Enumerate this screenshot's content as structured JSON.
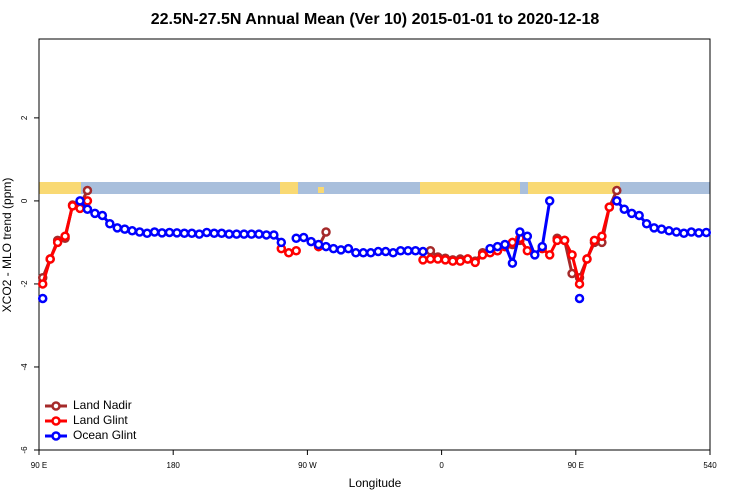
{
  "chart_data": {
    "type": "line",
    "title": "22.5N-27.5N Annual Mean (Ver 10)   2015-01-01 to 2020-12-18",
    "xlabel": "Longitude",
    "ylabel": "XCO2 - MLO trend (ppm)",
    "xlim": [
      90,
      540
    ],
    "ylim": [
      -6,
      3.9
    ],
    "xticks": [
      {
        "value": 90,
        "label": "90 E"
      },
      180,
      {
        "value": 270,
        "label": "90 W"
      },
      {
        "value": 360,
        "label": "0"
      },
      {
        "value": 450,
        "label": "90 E"
      },
      540
    ],
    "yticks": [
      -6,
      -4,
      -2,
      0,
      2
    ],
    "legend": "bottom-left",
    "x": [
      92.5,
      97.5,
      102.5,
      107.5,
      112.5,
      117.5,
      122.5,
      127.5,
      132.5,
      137.5,
      142.5,
      147.5,
      152.5,
      157.5,
      162.5,
      167.5,
      172.5,
      177.5,
      182.5,
      187.5,
      192.5,
      197.5,
      202.5,
      207.5,
      212.5,
      217.5,
      222.5,
      227.5,
      232.5,
      237.5,
      242.5,
      247.5,
      252.5,
      257.5,
      262.5,
      267.5,
      272.5,
      277.5,
      282.5,
      287.5,
      292.5,
      297.5,
      302.5,
      307.5,
      312.5,
      317.5,
      322.5,
      327.5,
      332.5,
      337.5,
      342.5,
      347.5,
      352.5,
      357.5,
      362.5,
      367.5,
      372.5,
      377.5,
      382.5,
      387.5,
      392.5,
      397.5,
      402.5,
      407.5,
      412.5,
      417.5,
      422.5,
      427.5,
      432.5,
      437.5,
      442.5,
      447.5,
      452.5,
      457.5,
      462.5,
      467.5,
      472.5,
      477.5,
      482.5,
      487.5,
      492.5,
      497.5,
      502.5,
      507.5,
      512.5,
      517.5,
      522.5,
      527.5,
      532.5,
      537.5
    ],
    "series": [
      {
        "name": "Land Nadir",
        "color": "#a52a2a",
        "values": [
          -1.85,
          -1.4,
          -0.95,
          -0.9,
          -0.1,
          -0.1,
          0.25,
          null,
          null,
          null,
          null,
          null,
          null,
          null,
          null,
          null,
          null,
          null,
          null,
          null,
          null,
          null,
          null,
          null,
          null,
          null,
          null,
          null,
          null,
          null,
          null,
          null,
          null,
          null,
          null,
          null,
          null,
          -1.1,
          -0.75,
          null,
          null,
          null,
          null,
          null,
          null,
          null,
          null,
          null,
          null,
          null,
          null,
          null,
          -1.2,
          -1.35,
          -1.38,
          -1.42,
          -1.4,
          -1.4,
          -1.45,
          -1.25,
          -1.2,
          -1.2,
          -1.1,
          -1.05,
          -0.95,
          null,
          null,
          null,
          null,
          -0.9,
          -0.95,
          -1.75,
          -1.85,
          -1.4,
          -1.0,
          -1.0,
          -0.15,
          0.25,
          null,
          null,
          null,
          null,
          null,
          null,
          null,
          null,
          null,
          null,
          null,
          null
        ]
      },
      {
        "name": "Land Glint",
        "color": "#ff0000",
        "values": [
          -2.0,
          -1.4,
          -1.0,
          -0.85,
          -0.12,
          -0.18,
          0,
          null,
          null,
          null,
          null,
          null,
          null,
          null,
          null,
          null,
          null,
          null,
          null,
          null,
          null,
          null,
          null,
          null,
          null,
          null,
          null,
          null,
          null,
          null,
          null,
          null,
          -1.15,
          -1.25,
          -1.2,
          null,
          null,
          -1.1,
          null,
          null,
          null,
          null,
          null,
          null,
          null,
          null,
          null,
          null,
          null,
          null,
          null,
          -1.42,
          -1.4,
          -1.4,
          -1.42,
          -1.45,
          -1.45,
          -1.4,
          -1.48,
          -1.3,
          -1.25,
          -1.2,
          -1.1,
          -1.0,
          -0.9,
          -1.2,
          null,
          -1.15,
          -1.3,
          -0.95,
          -0.95,
          -1.3,
          -2.0,
          -1.4,
          -0.95,
          -0.85,
          -0.15,
          0,
          null,
          null,
          null,
          null,
          null,
          null,
          null,
          null,
          null,
          null,
          null,
          null
        ]
      },
      {
        "name": "Ocean Glint",
        "color": "#0000ff",
        "values": [
          -2.35,
          null,
          null,
          null,
          null,
          0,
          -0.2,
          -0.3,
          -0.35,
          -0.55,
          -0.65,
          -0.68,
          -0.72,
          -0.75,
          -0.78,
          -0.75,
          -0.77,
          -0.76,
          -0.77,
          -0.78,
          -0.78,
          -0.8,
          -0.76,
          -0.78,
          -0.78,
          -0.8,
          -0.8,
          -0.8,
          -0.8,
          -0.8,
          -0.82,
          -0.82,
          -1.0,
          null,
          -0.9,
          -0.88,
          -0.98,
          -1.05,
          -1.1,
          -1.15,
          -1.18,
          -1.15,
          -1.25,
          -1.25,
          -1.25,
          -1.22,
          -1.22,
          -1.25,
          -1.2,
          -1.2,
          -1.2,
          -1.22,
          null,
          null,
          null,
          null,
          null,
          null,
          null,
          null,
          -1.15,
          -1.1,
          -1.05,
          -1.5,
          -0.75,
          -0.85,
          -1.3,
          -1.1,
          0,
          null,
          null,
          null,
          -2.35,
          null,
          null,
          null,
          null,
          0,
          -0.2,
          -0.3,
          -0.35,
          -0.55,
          -0.65,
          -0.68,
          -0.72,
          -0.75,
          -0.78,
          -0.75,
          -0.77,
          -0.76
        ]
      }
    ]
  }
}
